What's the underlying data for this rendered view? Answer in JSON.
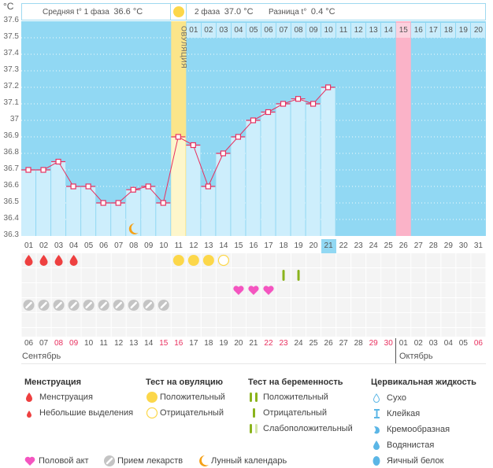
{
  "chart_data": {
    "type": "bar",
    "title": "",
    "ylabel": "°C",
    "ylim": [
      36.3,
      37.6
    ],
    "yticks": [
      "37.6",
      "37.5",
      "37.4",
      "37.3",
      "37.2",
      "37.1",
      "37",
      "36.9",
      "36.8",
      "36.7",
      "36.6",
      "36.5",
      "36.4",
      "36.3"
    ],
    "cycle_days": [
      "01",
      "02",
      "03",
      "04",
      "05",
      "06",
      "07",
      "08",
      "09",
      "10",
      "11",
      "12",
      "13",
      "14",
      "15",
      "16",
      "17",
      "18",
      "19",
      "20",
      "21",
      "22",
      "23",
      "24",
      "25",
      "26",
      "27",
      "28",
      "29",
      "30",
      "31"
    ],
    "temperatures": [
      36.7,
      36.7,
      36.75,
      36.6,
      36.6,
      36.5,
      36.5,
      36.58,
      36.6,
      36.5,
      36.9,
      36.85,
      36.6,
      36.8,
      36.9,
      37.0,
      37.05,
      37.1,
      37.13,
      37.1,
      37.2
    ],
    "current_day": "21",
    "ovulation_day": 11,
    "ovulation_label": "ОВУЛЯЦИЯ",
    "expected_period_day": 26,
    "phase2_days": [
      "01",
      "02",
      "03",
      "04",
      "05",
      "06",
      "07",
      "08",
      "09",
      "10",
      "11",
      "12",
      "13",
      "14",
      "15",
      "16",
      "17",
      "18",
      "19",
      "20"
    ],
    "phase2_highlight": "15",
    "calendar_dates": [
      "06",
      "07",
      "08",
      "09",
      "10",
      "11",
      "12",
      "13",
      "14",
      "15",
      "16",
      "17",
      "18",
      "19",
      "20",
      "21",
      "22",
      "23",
      "24",
      "25",
      "26",
      "27",
      "28",
      "29",
      "30",
      "01",
      "02",
      "03",
      "04",
      "05",
      "06"
    ],
    "weekend_date_indexes": [
      2,
      3,
      9,
      10,
      16,
      17,
      23,
      24,
      30
    ],
    "today_date": "26",
    "months": [
      "Сентябрь",
      "Октябрь"
    ],
    "menstruation_days": [
      1,
      2,
      3,
      4
    ],
    "ovulation_test_positive_days": [
      11,
      12,
      13
    ],
    "ovulation_test_negative_days": [
      14
    ],
    "pregnancy_test_negative_days": [
      18,
      19
    ],
    "intercourse_days": [
      15,
      16,
      17
    ],
    "medication_days": [
      1,
      2,
      3,
      4,
      5,
      6,
      7,
      8,
      9,
      10
    ],
    "lunar_days": [
      8
    ]
  },
  "header": {
    "phase1_label": "Средняя t° 1 фаза",
    "phase1_value": "36.6 °C",
    "phase2_label": "2 фаза",
    "phase2_value": "37.0 °C",
    "diff_label": "Разница t°",
    "diff_value": "0.4 °C"
  },
  "colors": {
    "bg_blue": "#91d8f3",
    "bar_fill": "#cdeefc",
    "line": "#e8305f",
    "ovulation": "#fbe58a",
    "ovulation_low": "#fdf6cb",
    "expected_period": "#fbb3c8",
    "today": "#91d8f3",
    "weekend_text": "#e8305f"
  },
  "legend": {
    "menstruation": {
      "title": "Менструация",
      "items": [
        "Менструация",
        "Небольшие выделения"
      ]
    },
    "ovulation_test": {
      "title": "Тест на овуляцию",
      "items": [
        "Положительный",
        "Отрицательный"
      ]
    },
    "pregnancy_test": {
      "title": "Тест на беременность",
      "items": [
        "Положительный",
        "Отрицательный",
        "Слабоположительный"
      ]
    },
    "cervical": {
      "title": "Цервикальная жидкость",
      "items": [
        "Сухо",
        "Клейкая",
        "Кремообразная",
        "Водянистая",
        "Яичный белок"
      ]
    },
    "bottom": [
      "Половой акт",
      "Прием лекарств",
      "Лунный календарь"
    ]
  }
}
